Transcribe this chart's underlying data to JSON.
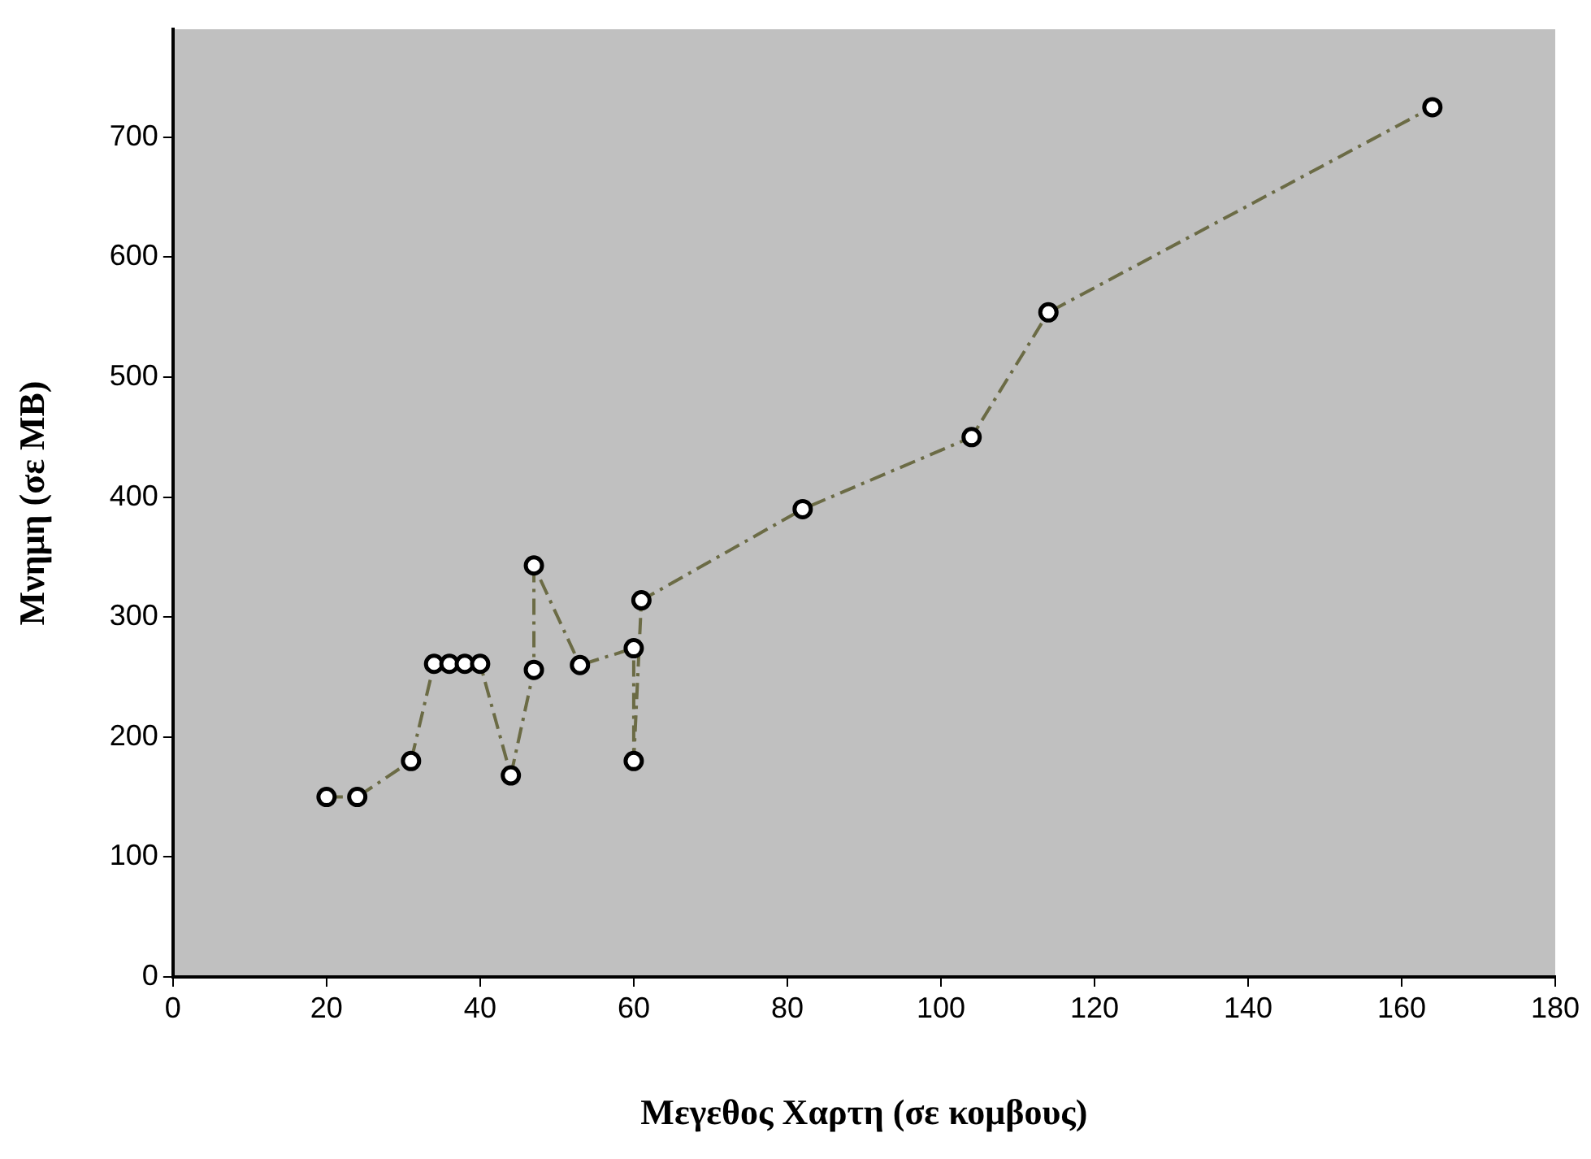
{
  "chart_data": {
    "type": "line",
    "xlabel": "Μεγεθος Χαρτη (σε κομβους)",
    "ylabel": "Μνημη (σε MB)",
    "x": [
      20,
      24,
      31,
      34,
      36,
      38,
      40,
      44,
      47,
      47,
      53,
      60,
      60,
      61,
      82,
      104,
      114,
      164
    ],
    "series": [
      {
        "color": "#6b6b45",
        "values": [
          150,
          150,
          180,
          261,
          261,
          261,
          261,
          168,
          256,
          343,
          260,
          274,
          180,
          314,
          390,
          450,
          554,
          725
        ]
      }
    ],
    "xlim": [
      0,
      180
    ],
    "xticks": [
      0,
      20,
      40,
      60,
      80,
      100,
      120,
      140,
      160,
      180
    ],
    "ylim": [
      0,
      790
    ],
    "yticks": [
      0,
      100,
      200,
      300,
      400,
      500,
      600,
      700
    ],
    "grid": false,
    "legend": false,
    "marker": "circle",
    "line_style": "dashed"
  }
}
